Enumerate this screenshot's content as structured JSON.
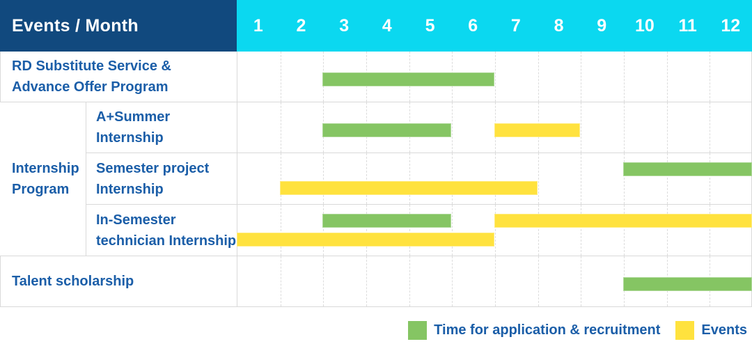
{
  "header": {
    "title": "Events / Month",
    "months": [
      "1",
      "2",
      "3",
      "4",
      "5",
      "6",
      "7",
      "8",
      "9",
      "10",
      "11",
      "12"
    ]
  },
  "colors": {
    "header_navy": "#11497E",
    "header_cyan": "#0BD8F0",
    "green": "#85C563",
    "yellow": "#FFE23E",
    "label_blue": "#1B5EA8",
    "grid_line": "#D9D9D9"
  },
  "chart_data": {
    "type": "bar",
    "subtype": "gantt-schedule",
    "title": "Events / Month",
    "x_unit": "month",
    "x_range": [
      1,
      12
    ],
    "x_ticks": [
      1,
      2,
      3,
      4,
      5,
      6,
      7,
      8,
      9,
      10,
      11,
      12
    ],
    "grid": true,
    "legend_position": "bottom-right",
    "group_label": {
      "label": "Internship Program",
      "label_lines": [
        "Internship",
        "Program"
      ]
    },
    "rows": [
      {
        "label": "RD Substitute Service & Advance Offer Program",
        "label_lines": [
          "RD Substitute Service &",
          "Advance Offer Program"
        ],
        "group": null,
        "bars": [
          {
            "type": "application",
            "color": "green",
            "start_month": 3,
            "end_month": 6,
            "lane": "mid"
          }
        ]
      },
      {
        "label": "A+Summer Internship",
        "label_lines": [
          "A+Summer",
          "Internship"
        ],
        "group": "Internship Program",
        "bars": [
          {
            "type": "application",
            "color": "green",
            "start_month": 3,
            "end_month": 5,
            "lane": "mid"
          },
          {
            "type": "event",
            "color": "yellow",
            "start_month": 7,
            "end_month": 8,
            "lane": "mid"
          }
        ]
      },
      {
        "label": "Semester project Internship",
        "label_lines": [
          "Semester project",
          "Internship"
        ],
        "group": "Internship Program",
        "bars": [
          {
            "type": "application",
            "color": "green",
            "start_month": 10,
            "end_month": 12,
            "lane": "upper"
          },
          {
            "type": "event",
            "color": "yellow",
            "start_month": 2,
            "end_month": 7,
            "lane": "lower"
          }
        ]
      },
      {
        "label": "In-Semester technician Internship",
        "label_lines": [
          "In-Semester",
          "technician Internship"
        ],
        "group": "Internship Program",
        "bars": [
          {
            "type": "application",
            "color": "green",
            "start_month": 3,
            "end_month": 5,
            "lane": "upper"
          },
          {
            "type": "event",
            "color": "yellow",
            "start_month": 7,
            "end_month": 12,
            "lane": "upper"
          },
          {
            "type": "event",
            "color": "yellow",
            "start_month": 1,
            "end_month": 6,
            "lane": "lower"
          }
        ]
      },
      {
        "label": "Talent scholarship",
        "label_lines": [
          "Talent scholarship"
        ],
        "group": null,
        "bars": [
          {
            "type": "application",
            "color": "green",
            "start_month": 10,
            "end_month": 12,
            "lane": "mid"
          }
        ]
      }
    ],
    "legend": [
      {
        "color": "green",
        "label": "Time for application & recruitment"
      },
      {
        "color": "yellow",
        "label": "Events"
      }
    ]
  }
}
